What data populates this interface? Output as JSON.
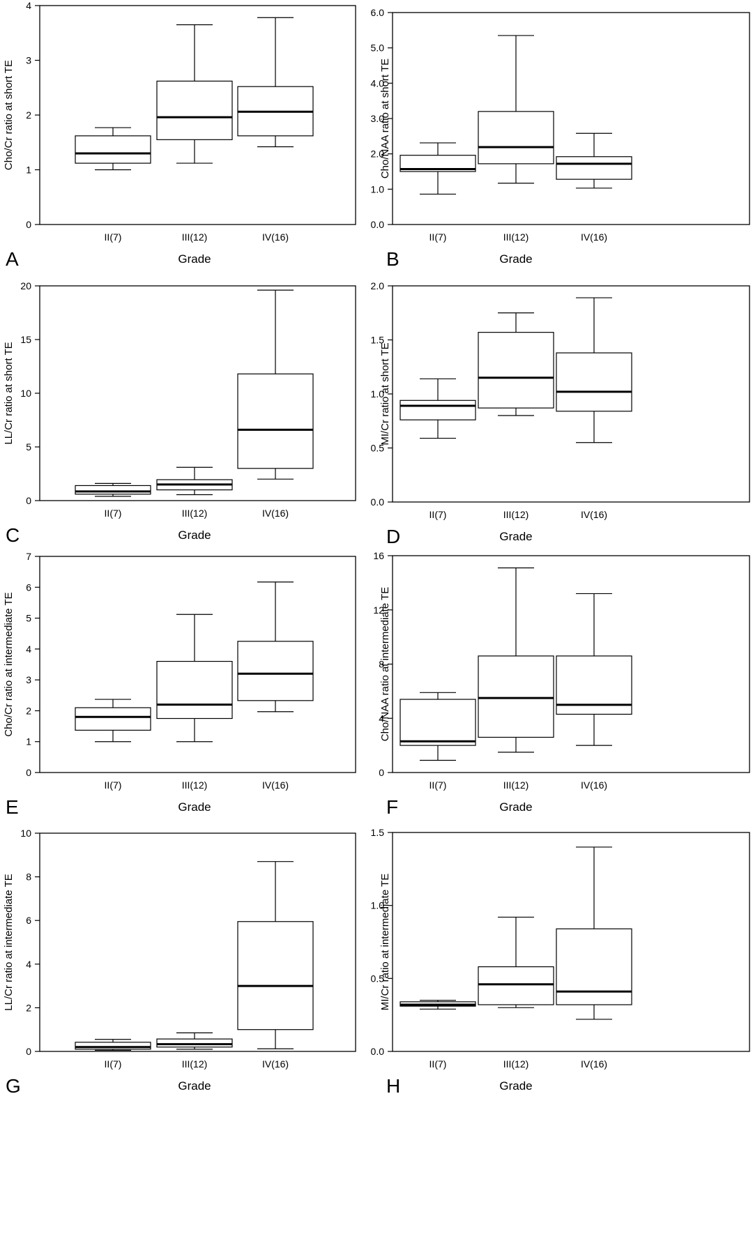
{
  "chart_data": [
    {
      "type": "box",
      "panel_label": "A",
      "ylabel": "Cho/Cr ratio at short TE",
      "xlabel": "Grade",
      "ylim": [
        0,
        4
      ],
      "yticks": [
        0,
        1,
        2,
        3,
        4
      ],
      "yticks_text": [
        "0",
        "1",
        "2",
        "3",
        "4"
      ],
      "categories": [
        "II(7)",
        "III(12)",
        "IV(16)"
      ],
      "boxes": [
        {
          "whislo": 1.0,
          "q1": 1.12,
          "med": 1.3,
          "q3": 1.62,
          "whishi": 1.77
        },
        {
          "whislo": 1.12,
          "q1": 1.55,
          "med": 1.96,
          "q3": 2.62,
          "whishi": 3.65
        },
        {
          "whislo": 1.42,
          "q1": 1.62,
          "med": 2.06,
          "q3": 2.52,
          "whishi": 3.78
        }
      ]
    },
    {
      "type": "box",
      "panel_label": "B",
      "ylabel": "Cho/NAA ratio at short TE",
      "xlabel": "Grade",
      "ylim": [
        0,
        6
      ],
      "yticks": [
        0,
        1,
        2,
        3,
        4,
        5,
        6
      ],
      "yticks_text": [
        "0.0",
        "1.0",
        "2.0",
        "3.0",
        "4.0",
        "5.0",
        "6.0"
      ],
      "categories": [
        "II(7)",
        "III(12)",
        "IV(16)"
      ],
      "boxes": [
        {
          "whislo": 0.86,
          "q1": 1.5,
          "med": 1.57,
          "q3": 1.96,
          "whishi": 2.31
        },
        {
          "whislo": 1.17,
          "q1": 1.72,
          "med": 2.19,
          "q3": 3.2,
          "whishi": 5.35
        },
        {
          "whislo": 1.03,
          "q1": 1.28,
          "med": 1.72,
          "q3": 1.92,
          "whishi": 2.58
        }
      ]
    },
    {
      "type": "box",
      "panel_label": "C",
      "ylabel": "LL/Cr ratio at short TE",
      "xlabel": "Grade",
      "ylim": [
        0,
        20
      ],
      "yticks": [
        0,
        5,
        10,
        15,
        20
      ],
      "yticks_text": [
        "0",
        "5",
        "10",
        "15",
        "20"
      ],
      "categories": [
        "II(7)",
        "III(12)",
        "IV(16)"
      ],
      "boxes": [
        {
          "whislo": 0.4,
          "q1": 0.6,
          "med": 0.85,
          "q3": 1.4,
          "whishi": 1.6
        },
        {
          "whislo": 0.55,
          "q1": 1.0,
          "med": 1.5,
          "q3": 1.95,
          "whishi": 3.1
        },
        {
          "whislo": 2.0,
          "q1": 3.0,
          "med": 6.6,
          "q3": 11.8,
          "whishi": 19.6
        }
      ]
    },
    {
      "type": "box",
      "panel_label": "D",
      "ylabel": "MI/Cr ratio at short TE",
      "xlabel": "Grade",
      "ylim": [
        0,
        2
      ],
      "yticks": [
        0,
        0.5,
        1,
        1.5,
        2
      ],
      "yticks_text": [
        "0.0",
        "0.5",
        "1.0",
        "1.5",
        "2.0"
      ],
      "categories": [
        "II(7)",
        "III(12)",
        "IV(16)"
      ],
      "boxes": [
        {
          "whislo": 0.59,
          "q1": 0.76,
          "med": 0.89,
          "q3": 0.94,
          "whishi": 1.14
        },
        {
          "whislo": 0.8,
          "q1": 0.87,
          "med": 1.15,
          "q3": 1.57,
          "whishi": 1.75
        },
        {
          "whislo": 0.55,
          "q1": 0.84,
          "med": 1.02,
          "q3": 1.38,
          "whishi": 1.89
        }
      ]
    },
    {
      "type": "box",
      "panel_label": "E",
      "ylabel": "Cho/Cr ratio at intermediate TE",
      "xlabel": "Grade",
      "ylim": [
        0,
        7
      ],
      "yticks": [
        0,
        1,
        2,
        3,
        4,
        5,
        6,
        7
      ],
      "yticks_text": [
        "0",
        "1",
        "2",
        "3",
        "4",
        "5",
        "6",
        "7"
      ],
      "categories": [
        "II(7)",
        "III(12)",
        "IV(16)"
      ],
      "boxes": [
        {
          "whislo": 1.0,
          "q1": 1.37,
          "med": 1.8,
          "q3": 2.1,
          "whishi": 2.37
        },
        {
          "whislo": 1.0,
          "q1": 1.75,
          "med": 2.2,
          "q3": 3.6,
          "whishi": 5.12
        },
        {
          "whislo": 1.97,
          "q1": 2.33,
          "med": 3.2,
          "q3": 4.25,
          "whishi": 6.17
        }
      ]
    },
    {
      "type": "box",
      "panel_label": "F",
      "ylabel": "Cho/NAA ratio at intermediate TE",
      "xlabel": "Grade",
      "ylim": [
        0,
        16
      ],
      "yticks": [
        0,
        4,
        8,
        12,
        16
      ],
      "yticks_text": [
        "0",
        "4",
        "8",
        "12",
        "16"
      ],
      "categories": [
        "II(7)",
        "III(12)",
        "IV(16)"
      ],
      "boxes": [
        {
          "whislo": 0.9,
          "q1": 2.0,
          "med": 2.3,
          "q3": 5.4,
          "whishi": 5.9
        },
        {
          "whislo": 1.5,
          "q1": 2.6,
          "med": 5.5,
          "q3": 8.6,
          "whishi": 15.1
        },
        {
          "whislo": 2.0,
          "q1": 4.3,
          "med": 5.0,
          "q3": 8.6,
          "whishi": 13.2
        }
      ]
    },
    {
      "type": "box",
      "panel_label": "G",
      "ylabel": "LL/Cr ratio at intermediate TE",
      "xlabel": "Grade",
      "ylim": [
        0,
        10
      ],
      "yticks": [
        0,
        2,
        4,
        6,
        8,
        10
      ],
      "yticks_text": [
        "0",
        "2",
        "4",
        "6",
        "8",
        "10"
      ],
      "categories": [
        "II(7)",
        "III(12)",
        "IV(16)"
      ],
      "boxes": [
        {
          "whislo": 0.05,
          "q1": 0.1,
          "med": 0.2,
          "q3": 0.42,
          "whishi": 0.55
        },
        {
          "whislo": 0.1,
          "q1": 0.2,
          "med": 0.33,
          "q3": 0.57,
          "whishi": 0.85
        },
        {
          "whislo": 0.12,
          "q1": 1.0,
          "med": 3.0,
          "q3": 5.95,
          "whishi": 8.7
        }
      ]
    },
    {
      "type": "box",
      "panel_label": "H",
      "ylabel": "MI/Cr ratio at intermediate TE",
      "xlabel": "Grade",
      "ylim": [
        0,
        1.5
      ],
      "yticks": [
        0,
        0.5,
        1,
        1.5
      ],
      "yticks_text": [
        "0.0",
        "0.5",
        "1.0",
        "1.5"
      ],
      "categories": [
        "II(7)",
        "III(12)",
        "IV(16)"
      ],
      "boxes": [
        {
          "whislo": 0.29,
          "q1": 0.31,
          "med": 0.32,
          "q3": 0.34,
          "whishi": 0.35
        },
        {
          "whislo": 0.3,
          "q1": 0.32,
          "med": 0.46,
          "q3": 0.58,
          "whishi": 0.92
        },
        {
          "whislo": 0.22,
          "q1": 0.32,
          "med": 0.41,
          "q3": 0.84,
          "whishi": 1.4
        }
      ]
    }
  ]
}
